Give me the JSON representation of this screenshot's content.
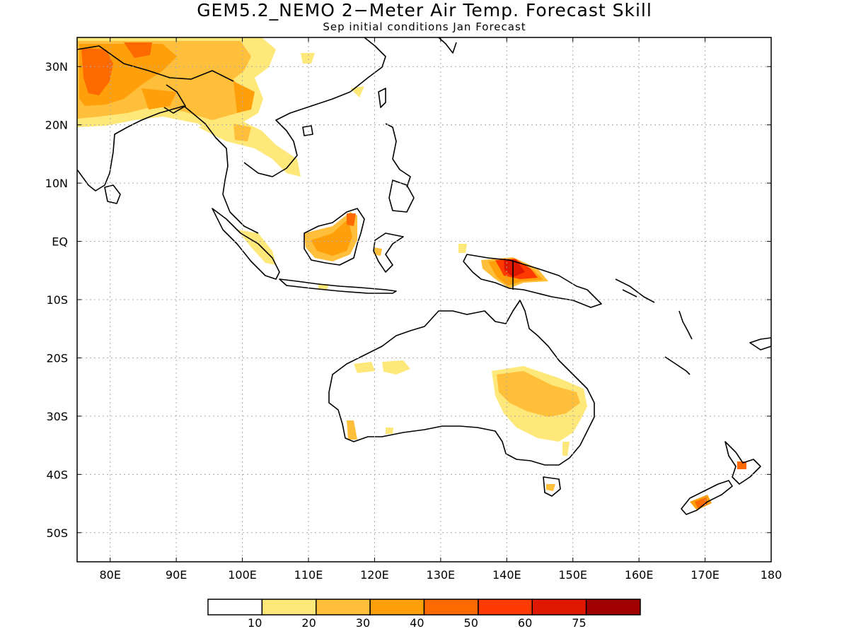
{
  "title": "GEM5.2_NEMO 2−Meter Air Temp. Forecast Skill",
  "subtitle": "Sep initial conditions  Jan Forecast",
  "map": {
    "lon_range": [
      75,
      180
    ],
    "lat_range": [
      -55,
      35
    ],
    "lat_ticks": [
      {
        "v": 30,
        "label": "30N"
      },
      {
        "v": 20,
        "label": "20N"
      },
      {
        "v": 10,
        "label": "10N"
      },
      {
        "v": 0,
        "label": "EQ"
      },
      {
        "v": -10,
        "label": "10S"
      },
      {
        "v": -20,
        "label": "20S"
      },
      {
        "v": -30,
        "label": "30S"
      },
      {
        "v": -40,
        "label": "40S"
      },
      {
        "v": -50,
        "label": "50S"
      }
    ],
    "lon_ticks": [
      {
        "v": 80,
        "label": "80E"
      },
      {
        "v": 90,
        "label": "90E"
      },
      {
        "v": 100,
        "label": "100E"
      },
      {
        "v": 110,
        "label": "110E"
      },
      {
        "v": 120,
        "label": "120E"
      },
      {
        "v": 130,
        "label": "130E"
      },
      {
        "v": 140,
        "label": "140E"
      },
      {
        "v": 150,
        "label": "150E"
      },
      {
        "v": 160,
        "label": "160E"
      },
      {
        "v": 170,
        "label": "170E"
      },
      {
        "v": 180,
        "label": "180"
      }
    ],
    "grid": true,
    "coastline_color": "#000000"
  },
  "colorbar": {
    "colors": [
      "#ffffff",
      "#ffe87a",
      "#ffbf3a",
      "#ff9f0a",
      "#ff6a00",
      "#ff3a00",
      "#e01800",
      "#a00000"
    ],
    "labels": [
      "10",
      "20",
      "30",
      "40",
      "50",
      "60",
      "75"
    ]
  }
}
